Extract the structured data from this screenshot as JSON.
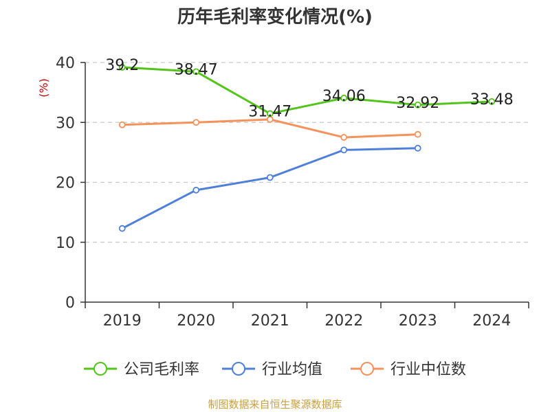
{
  "chart_data": {
    "type": "line",
    "title": "历年毛利率变化情况(%)",
    "unit_label": "(%)",
    "unit_color": "#cc0000",
    "categories": [
      "2019",
      "2020",
      "2021",
      "2022",
      "2023",
      "2024"
    ],
    "ylim": [
      0,
      40
    ],
    "y_ticks": [
      "0",
      "10",
      "20",
      "30",
      "40"
    ],
    "grid": true,
    "legend_position": "bottom",
    "series": [
      {
        "name": "公司毛利率",
        "color": "#52c41a",
        "values": [
          39.2,
          38.47,
          31.47,
          34.06,
          32.92,
          33.48
        ],
        "labels": [
          "39.2",
          "38.47",
          "31.47",
          "34.06",
          "32.92",
          "33.48"
        ]
      },
      {
        "name": "行业均值",
        "color": "#4e7fd9",
        "values": [
          12.3,
          18.7,
          20.8,
          25.4,
          25.7,
          null
        ]
      },
      {
        "name": "行业中位数",
        "color": "#f5915a",
        "values": [
          29.6,
          30.0,
          30.5,
          27.5,
          28.0,
          null
        ]
      }
    ]
  },
  "footer": {
    "source": "制图数据来自恒生聚源数据库",
    "source_color": "#c8a040"
  }
}
